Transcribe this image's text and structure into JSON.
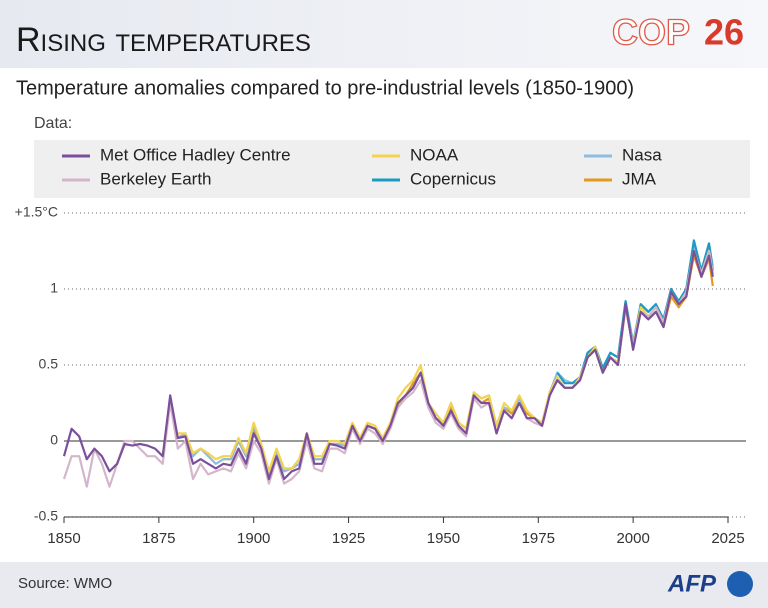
{
  "chart_data": {
    "type": "line",
    "title": "Rising temperatures",
    "logo": [
      "COP",
      "26"
    ],
    "subtitle": "Temperature anomalies compared to pre-industrial levels (1850-1900)",
    "legend_title": "Data:",
    "source": "Source: WMO",
    "credit": "AFP",
    "x": [
      1850,
      1852,
      1854,
      1856,
      1858,
      1860,
      1862,
      1864,
      1866,
      1868,
      1870,
      1872,
      1874,
      1876,
      1878,
      1880,
      1882,
      1884,
      1886,
      1888,
      1890,
      1892,
      1894,
      1896,
      1898,
      1900,
      1902,
      1904,
      1906,
      1908,
      1910,
      1912,
      1914,
      1916,
      1918,
      1920,
      1922,
      1924,
      1926,
      1928,
      1930,
      1932,
      1934,
      1936,
      1938,
      1940,
      1942,
      1944,
      1946,
      1948,
      1950,
      1952,
      1954,
      1956,
      1958,
      1960,
      1962,
      1964,
      1966,
      1968,
      1970,
      1972,
      1974,
      1976,
      1978,
      1980,
      1982,
      1984,
      1986,
      1988,
      1990,
      1992,
      1994,
      1996,
      1998,
      2000,
      2002,
      2004,
      2006,
      2008,
      2010,
      2012,
      2014,
      2016,
      2018,
      2020,
      2021
    ],
    "xlim": [
      1850,
      2025
    ],
    "xticks": [
      1850,
      1875,
      1900,
      1925,
      1950,
      1975,
      2000,
      2025
    ],
    "ylim": [
      -0.5,
      1.5
    ],
    "yticks": [
      -0.5,
      0,
      0.5,
      1,
      {
        "value": 1.5,
        "label": "+1.5°C"
      }
    ],
    "grid": true,
    "series": [
      {
        "name": "Met Office Hadley Centre",
        "color": "#7b4f9b",
        "values": [
          -0.1,
          0.08,
          0.03,
          -0.12,
          -0.05,
          -0.1,
          -0.2,
          -0.15,
          -0.02,
          -0.03,
          -0.02,
          -0.03,
          -0.05,
          -0.1,
          0.3,
          0.02,
          0.03,
          -0.15,
          -0.12,
          -0.15,
          -0.18,
          -0.15,
          -0.16,
          -0.05,
          -0.15,
          0.05,
          -0.05,
          -0.25,
          -0.1,
          -0.25,
          -0.2,
          -0.18,
          0.05,
          -0.15,
          -0.15,
          -0.02,
          -0.03,
          -0.05,
          0.1,
          0.0,
          0.1,
          0.08,
          0.0,
          0.1,
          0.25,
          0.3,
          0.35,
          0.45,
          0.25,
          0.15,
          0.1,
          0.2,
          0.1,
          0.05,
          0.3,
          0.25,
          0.25,
          0.05,
          0.2,
          0.15,
          0.25,
          0.15,
          0.15,
          0.1,
          0.3,
          0.4,
          0.35,
          0.35,
          0.4,
          0.55,
          0.6,
          0.45,
          0.55,
          0.5,
          0.9,
          0.6,
          0.85,
          0.8,
          0.85,
          0.75,
          0.98,
          0.9,
          0.95,
          1.25,
          1.08,
          1.22,
          1.08
        ]
      },
      {
        "name": "Berkeley Earth",
        "color": "#d4b6cb",
        "values": [
          -0.25,
          -0.1,
          -0.1,
          -0.3,
          -0.05,
          -0.15,
          -0.3,
          -0.15,
          0.0,
          0.0,
          -0.05,
          -0.1,
          -0.1,
          -0.15,
          0.25,
          -0.05,
          0.0,
          -0.25,
          -0.15,
          -0.22,
          -0.2,
          -0.18,
          -0.2,
          -0.08,
          -0.18,
          0.0,
          -0.08,
          -0.28,
          -0.12,
          -0.28,
          -0.25,
          -0.2,
          0.0,
          -0.18,
          -0.2,
          -0.05,
          -0.05,
          -0.08,
          0.08,
          -0.02,
          0.08,
          0.05,
          -0.02,
          0.08,
          0.22,
          0.28,
          0.32,
          0.4,
          0.22,
          0.12,
          0.08,
          0.18,
          0.08,
          0.03,
          0.28,
          0.22,
          0.25,
          0.05,
          0.2,
          0.15,
          0.25,
          0.15,
          0.12,
          0.1,
          0.3,
          0.4,
          0.35,
          0.35,
          0.4,
          0.55,
          0.6,
          0.45,
          0.55,
          0.5,
          0.88,
          0.62,
          0.85,
          0.82,
          0.88,
          0.78,
          0.98,
          0.9,
          0.98,
          1.25,
          1.1,
          1.25,
          1.1
        ]
      },
      {
        "name": "NOAA",
        "color": "#f3d34f",
        "values": [
          null,
          null,
          null,
          null,
          null,
          null,
          null,
          null,
          null,
          null,
          null,
          null,
          null,
          null,
          null,
          0.05,
          0.05,
          -0.08,
          -0.05,
          -0.08,
          -0.12,
          -0.1,
          -0.1,
          0.02,
          -0.08,
          0.12,
          -0.02,
          -0.2,
          -0.05,
          -0.18,
          -0.18,
          -0.12,
          0.05,
          -0.1,
          -0.1,
          0.0,
          0.0,
          -0.02,
          0.12,
          0.02,
          0.12,
          0.1,
          0.02,
          0.12,
          0.28,
          0.35,
          0.4,
          0.5,
          0.25,
          0.18,
          0.12,
          0.25,
          0.12,
          0.08,
          0.32,
          0.28,
          0.3,
          0.1,
          0.25,
          0.2,
          0.3,
          0.2,
          0.15,
          0.12,
          0.32,
          0.42,
          0.35,
          0.35,
          0.42,
          0.55,
          0.62,
          0.45,
          0.55,
          0.52,
          0.88,
          0.62,
          0.88,
          0.82,
          0.88,
          0.78,
          0.98,
          0.9,
          0.98,
          1.25,
          1.1,
          1.25,
          1.1
        ]
      },
      {
        "name": "Copernicus",
        "color": "#1b9bc2",
        "values": [
          null,
          null,
          null,
          null,
          null,
          null,
          null,
          null,
          null,
          null,
          null,
          null,
          null,
          null,
          null,
          null,
          null,
          null,
          null,
          null,
          null,
          null,
          null,
          null,
          null,
          null,
          null,
          null,
          null,
          null,
          null,
          null,
          null,
          null,
          null,
          null,
          null,
          null,
          null,
          null,
          null,
          null,
          null,
          null,
          null,
          null,
          null,
          null,
          null,
          null,
          null,
          null,
          null,
          null,
          null,
          null,
          null,
          null,
          null,
          null,
          null,
          null,
          null,
          null,
          null,
          0.45,
          0.38,
          0.38,
          0.42,
          0.58,
          0.62,
          0.48,
          0.58,
          0.55,
          0.92,
          0.62,
          0.9,
          0.85,
          0.9,
          0.8,
          1.0,
          0.92,
          1.0,
          1.32,
          1.12,
          1.3,
          1.12
        ]
      },
      {
        "name": "Nasa",
        "color": "#8dbde0",
        "values": [
          null,
          null,
          null,
          null,
          null,
          null,
          null,
          null,
          null,
          null,
          null,
          null,
          null,
          null,
          null,
          0.02,
          0.05,
          -0.1,
          -0.05,
          -0.1,
          -0.15,
          -0.12,
          -0.12,
          0.0,
          -0.1,
          0.1,
          -0.03,
          -0.22,
          -0.08,
          -0.2,
          -0.18,
          -0.15,
          0.03,
          -0.12,
          -0.12,
          -0.02,
          -0.02,
          -0.03,
          0.1,
          0.0,
          0.1,
          0.08,
          0.0,
          0.1,
          0.25,
          0.3,
          0.35,
          0.45,
          0.25,
          0.15,
          0.12,
          0.25,
          0.12,
          0.08,
          0.32,
          0.28,
          0.3,
          0.1,
          0.22,
          0.2,
          0.28,
          0.2,
          0.15,
          0.12,
          0.32,
          0.45,
          0.4,
          0.38,
          0.42,
          0.58,
          0.62,
          0.48,
          0.58,
          0.55,
          0.92,
          0.65,
          0.9,
          0.85,
          0.9,
          0.8,
          1.0,
          0.92,
          1.0,
          1.3,
          1.12,
          1.3,
          1.15
        ]
      },
      {
        "name": "JMA",
        "color": "#e39b1b",
        "values": [
          null,
          null,
          null,
          null,
          null,
          null,
          null,
          null,
          null,
          null,
          null,
          null,
          null,
          null,
          null,
          null,
          null,
          null,
          null,
          null,
          null,
          -0.12,
          -0.12,
          0.0,
          -0.1,
          0.08,
          -0.05,
          -0.2,
          -0.08,
          -0.2,
          -0.18,
          -0.15,
          0.02,
          -0.12,
          -0.12,
          -0.02,
          -0.02,
          -0.03,
          0.08,
          0.0,
          0.1,
          0.08,
          0.0,
          0.1,
          0.22,
          0.3,
          0.38,
          0.45,
          0.25,
          0.15,
          0.12,
          0.22,
          0.12,
          0.08,
          0.3,
          0.25,
          0.28,
          0.1,
          0.22,
          0.18,
          0.28,
          0.18,
          0.15,
          0.12,
          0.3,
          0.4,
          0.35,
          0.35,
          0.4,
          0.55,
          0.6,
          0.45,
          0.55,
          0.5,
          0.88,
          0.62,
          0.85,
          0.8,
          0.85,
          0.75,
          0.95,
          0.88,
          0.95,
          1.22,
          1.08,
          1.2,
          1.02
        ]
      }
    ]
  }
}
